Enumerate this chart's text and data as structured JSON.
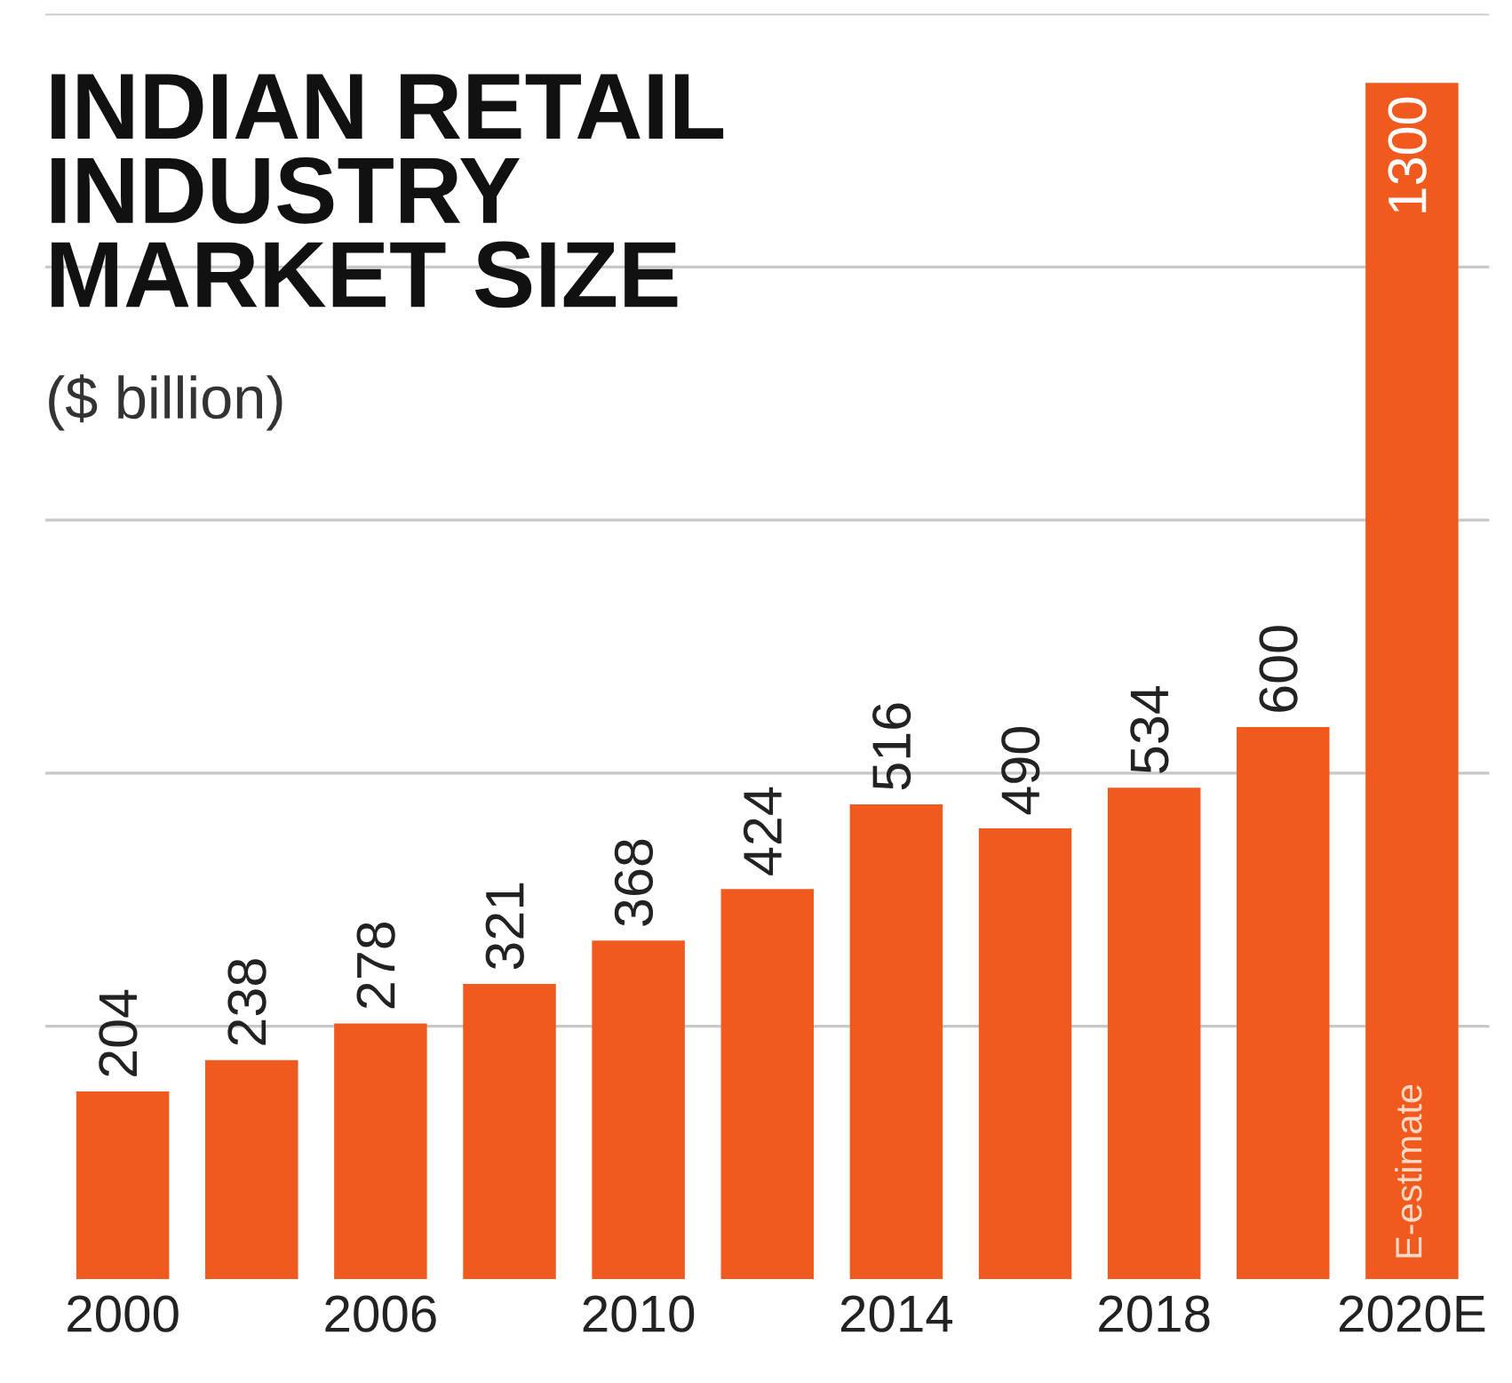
{
  "chart_data": {
    "type": "bar",
    "title": "INDIAN RETAIL\nINDUSTRY\nMARKET SIZE",
    "subtitle": "($ billion)",
    "categories": [
      "2000",
      null,
      "2006",
      null,
      "2010",
      null,
      "2014",
      null,
      "2018",
      null,
      "2020E"
    ],
    "values": [
      204,
      238,
      278,
      321,
      368,
      424,
      516,
      490,
      534,
      600,
      1300
    ],
    "color": "#f05a1e",
    "data_labels": true,
    "annotations": [
      "E-estimate"
    ],
    "ylim": [
      0,
      1375
    ],
    "yticks": [
      {
        "value": 275,
        "label": null
      },
      {
        "value": 550,
        "label": null
      },
      {
        "value": 825,
        "label": null
      },
      {
        "value": 1100,
        "label": null
      },
      {
        "value": 1375,
        "label": null
      }
    ],
    "grid": "y"
  }
}
